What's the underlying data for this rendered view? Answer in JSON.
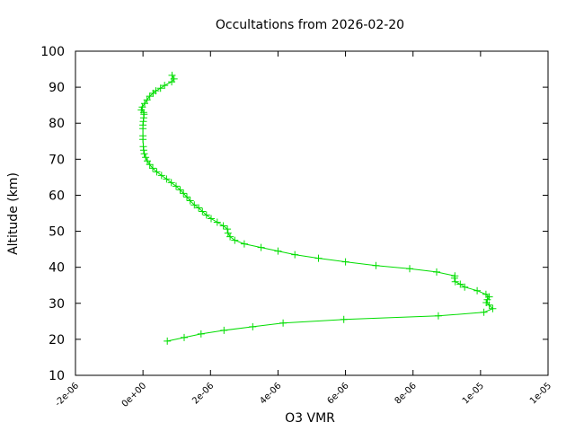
{
  "chart_data": {
    "type": "line",
    "title": "Occultations from 2026-02-20",
    "xlabel": "O3 VMR",
    "ylabel": "Altitude (km)",
    "xlim": [
      -2e-06,
      1.2e-05
    ],
    "ylim": [
      10,
      100
    ],
    "x_tick_values": [
      -2e-06,
      0,
      2e-06,
      4e-06,
      6e-06,
      8e-06,
      1e-05,
      1.2e-05
    ],
    "x_tick_labels": [
      "-2e-06",
      "0e+00",
      "2e-06",
      "4e-06",
      "6e-06",
      "8e-06",
      "1e-05",
      "1e-05"
    ],
    "y_tick_values": [
      10,
      20,
      30,
      40,
      50,
      60,
      70,
      80,
      90,
      100
    ],
    "y_tick_labels": [
      "10",
      "20",
      "30",
      "40",
      "50",
      "60",
      "70",
      "80",
      "90",
      "100"
    ],
    "grid": false,
    "legend": "none",
    "series_color": "#00dd00",
    "marker": "plus",
    "series": [
      {
        "x": [
          7.2e-07,
          1.22e-06,
          1.72e-06,
          2.4e-06,
          3.25e-06,
          4.15e-06,
          5.95e-06,
          8.75e-06,
          1.01e-05,
          1.036e-05,
          1.026e-05,
          1.017e-05,
          1.02e-05,
          1.026e-05,
          1.016e-05,
          9.9e-06,
          9.53e-06,
          9.4e-06,
          9.25e-06,
          9.23e-06,
          9.24e-06,
          8.7e-06,
          7.9e-06,
          6.9e-06,
          6e-06,
          5.2e-06,
          4.5e-06,
          4e-06,
          3.5e-06,
          3e-06,
          2.72e-06,
          2.58e-06,
          2.52e-06,
          2.5e-06,
          2.38e-06,
          2.2e-06,
          2.02e-06,
          1.88e-06,
          1.76e-06,
          1.65e-06,
          1.52e-06,
          1.4e-06,
          1.3e-06,
          1.2e-06,
          1.1e-06,
          9.8e-07,
          8.4e-07,
          7e-07,
          5.5e-07,
          4.1e-07,
          2.9e-07,
          2e-07,
          1.3e-07,
          8e-08,
          4e-08,
          2e-08,
          1e-08,
          0.0,
          0.0,
          0.0,
          0.0,
          1e-08,
          2e-08,
          3e-08,
          2e-08,
          -5e-08,
          -2e-08,
          5e-08,
          1.2e-07,
          2e-07,
          3e-07,
          3.8e-07,
          5.2e-07,
          6.4e-07,
          8.5e-07,
          9.2e-07,
          8.6e-07
        ],
        "y": [
          19.5,
          20.5,
          21.5,
          22.5,
          23.5,
          24.5,
          25.5,
          26.5,
          27.5,
          28.5,
          29.5,
          30.2,
          31.0,
          31.8,
          32.5,
          33.5,
          34.5,
          35.3,
          36.0,
          37.0,
          37.6,
          38.7,
          39.6,
          40.5,
          41.5,
          42.5,
          43.5,
          44.5,
          45.5,
          46.5,
          47.5,
          48.5,
          49.5,
          50.6,
          51.5,
          52.5,
          53.5,
          54.5,
          55.5,
          56.5,
          57.3,
          58.5,
          59.5,
          60.5,
          61.5,
          62.5,
          63.5,
          64.5,
          65.5,
          66.5,
          67.5,
          68.5,
          69.5,
          70.5,
          71.5,
          72.5,
          73.5,
          75.5,
          76.5,
          78.5,
          79.5,
          80.5,
          81.5,
          82.5,
          83.0,
          83.7,
          84.5,
          85.5,
          86.5,
          87.5,
          88.3,
          89.0,
          89.7,
          90.5,
          91.5,
          92.3,
          93.3
        ]
      }
    ]
  }
}
